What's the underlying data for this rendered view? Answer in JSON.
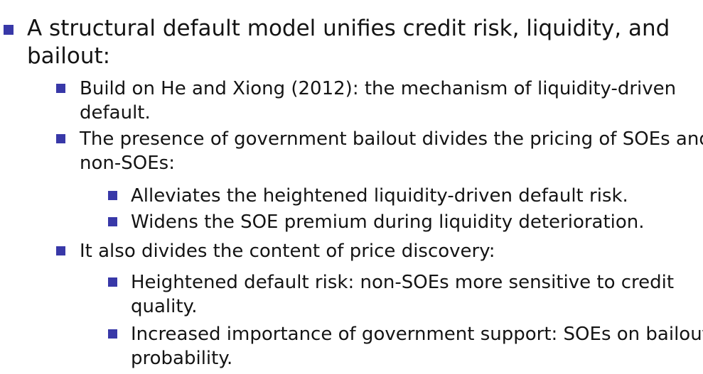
{
  "slide": {
    "bullet_color": "#3838a8",
    "items": [
      {
        "level": 1,
        "lines": [
          "A structural default model unifies credit risk, liquidity, and",
          "bailout:"
        ]
      },
      {
        "level": 2,
        "lines": [
          "Build on He and Xiong (2012): the mechanism of liquidity-driven",
          "default."
        ]
      },
      {
        "level": 2,
        "lines": [
          "The presence of government bailout divides the pricing of SOEs and",
          "non-SOEs:"
        ]
      },
      {
        "level": 3,
        "lines": [
          "Alleviates the heightened liquidity-driven default risk."
        ]
      },
      {
        "level": 3,
        "lines": [
          "Widens the SOE premium during liquidity deterioration."
        ]
      },
      {
        "level": 2,
        "lines": [
          "It also divides the content of price discovery:"
        ]
      },
      {
        "level": 3,
        "lines": [
          "Heightened default risk: non-SOEs more sensitive to credit",
          "quality."
        ]
      },
      {
        "level": 3,
        "lines": [
          "Increased importance of government support: SOEs on bailout",
          "probability."
        ]
      }
    ]
  }
}
